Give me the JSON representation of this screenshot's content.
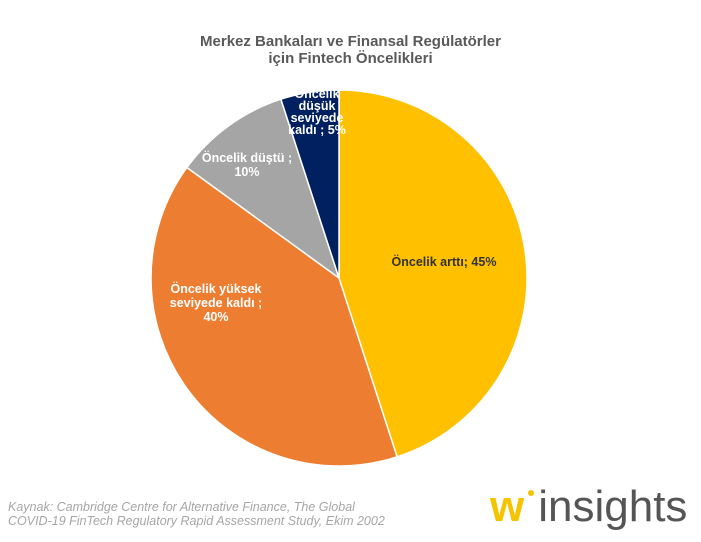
{
  "chart_data": {
    "type": "pie",
    "title_lines": [
      "Merkez Bankaları ve Finansal Regülatörler",
      "için Fintech Öncelikleri"
    ],
    "slices": [
      {
        "label_lines": [
          "Öncelik arttı; 45%"
        ],
        "value": 45,
        "color": "#FFC000",
        "text_color": "#333333"
      },
      {
        "label_lines": [
          "Öncelik yüksek",
          "seviyede kaldı ;",
          "40%"
        ],
        "value": 40,
        "color": "#ED7D31",
        "text_color": "#ffffff"
      },
      {
        "label_lines": [
          "Öncelik düştü ;",
          "10%"
        ],
        "value": 10,
        "color": "#A5A5A5",
        "text_color": "#ffffff"
      },
      {
        "label_lines": [
          "Öncelik",
          "düşük",
          "seviyede",
          "kaldı ; 5%"
        ],
        "value": 5,
        "color": "#002060",
        "text_color": "#ffffff"
      }
    ]
  },
  "source_lines": [
    "Kaynak: Cambridge Centre for Alternative Finance, The Global",
    "COVID-19 FinTech Regulatory Rapid Assessment Study, Ekim 2002"
  ],
  "logo": {
    "mark": "w",
    "text": "insights"
  }
}
